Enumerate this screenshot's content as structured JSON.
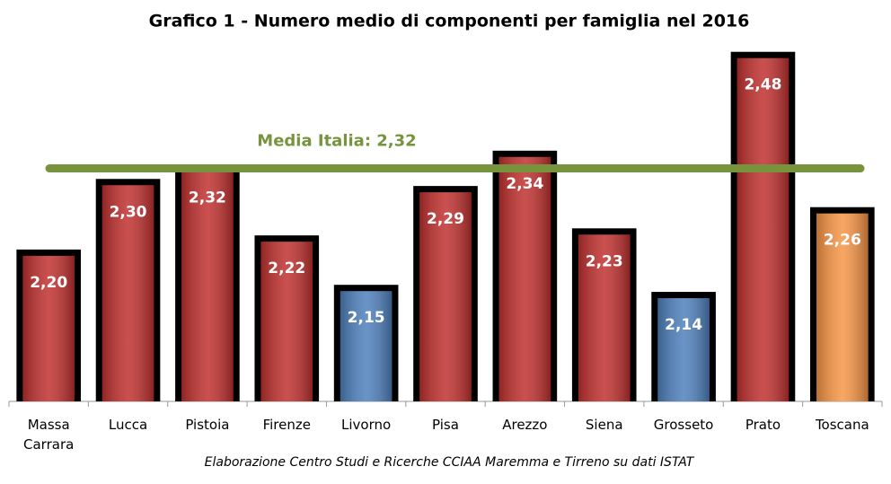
{
  "chart_data": {
    "type": "bar",
    "title": "Grafico 1 - Numero medio di componenti per famiglia nel 2016",
    "categories": [
      "Massa Carrara",
      "Lucca",
      "Pistoia",
      "Firenze",
      "Livorno",
      "Pisa",
      "Arezzo",
      "Siena",
      "Grosseto",
      "Prato",
      "Toscana"
    ],
    "values": [
      2.2,
      2.3,
      2.32,
      2.22,
      2.15,
      2.29,
      2.34,
      2.23,
      2.14,
      2.48,
      2.26
    ],
    "value_labels": [
      "2,20",
      "2,30",
      "2,32",
      "2,22",
      "2,15",
      "2,29",
      "2,34",
      "2,23",
      "2,14",
      "2,48",
      "2,26"
    ],
    "colors": [
      "#c0312f",
      "#c0312f",
      "#c0312f",
      "#c0312f",
      "#4f81bd",
      "#c0312f",
      "#c0312f",
      "#c0312f",
      "#4f81bd",
      "#c0312f",
      "#f79646"
    ],
    "ylim": [
      1.99,
      2.5
    ],
    "reference_line": {
      "value": 2.32,
      "label": "Media Italia: 2,32",
      "color": "#77933c"
    },
    "note": "Elaborazione Centro Studi e Ricerche CCIAA Maremma e Tirreno su dati ISTAT"
  }
}
